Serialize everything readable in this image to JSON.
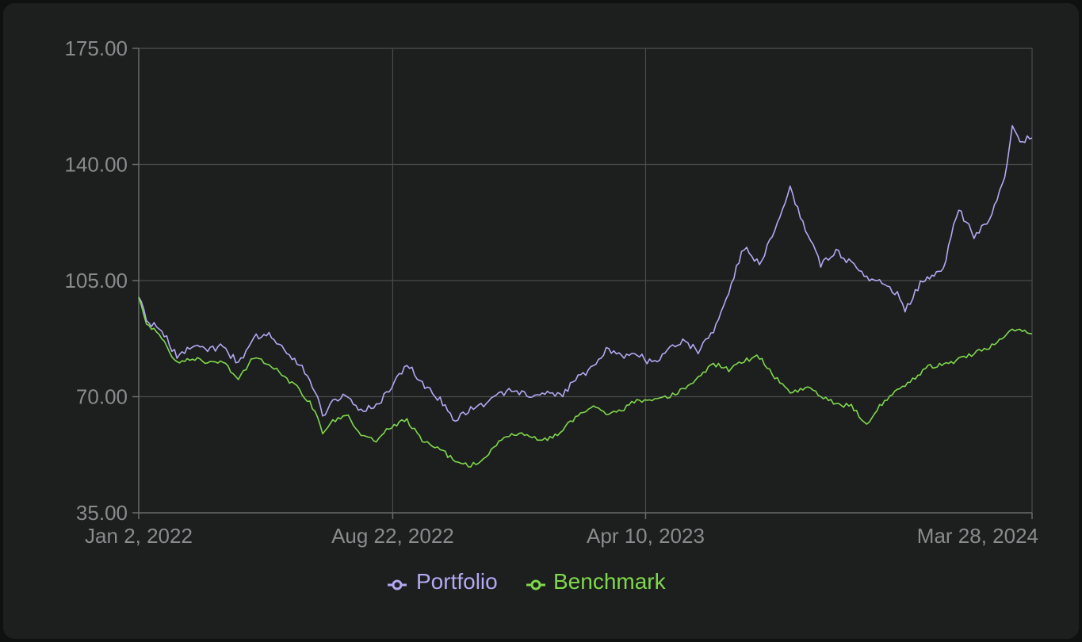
{
  "colors": {
    "background": "#1d1e1e",
    "grid": "#4a4b4c",
    "axis": "#6a6b6c",
    "tick_text": "#8a8b8c",
    "portfolio": "#b3a8f2",
    "benchmark": "#7fd94a"
  },
  "chart_data": {
    "type": "line",
    "x_axis": {
      "type": "date",
      "range": [
        "2022-01-02",
        "2024-03-28"
      ],
      "ticks": [
        "2022-01-02",
        "2022-08-22",
        "2023-04-10",
        "2024-03-28"
      ],
      "tick_labels": [
        "Jan 2, 2022",
        "Aug 22, 2022",
        "Apr 10, 2023",
        "Mar 28, 2024"
      ]
    },
    "y_axis": {
      "range": [
        35,
        175
      ],
      "ticks": [
        35,
        70,
        105,
        140,
        175
      ],
      "tick_labels": [
        "35.00",
        "70.00",
        "105.00",
        "140.00",
        "175.00"
      ]
    },
    "grid": true,
    "legend_position": "bottom-center",
    "series": [
      {
        "name": "Portfolio",
        "color": "#b3a8f2",
        "points": [
          [
            "2022-01-02",
            100
          ],
          [
            "2022-01-09",
            93
          ],
          [
            "2022-01-23",
            90
          ],
          [
            "2022-02-06",
            82
          ],
          [
            "2022-02-20",
            86
          ],
          [
            "2022-03-06",
            84
          ],
          [
            "2022-03-20",
            85
          ],
          [
            "2022-04-03",
            80
          ],
          [
            "2022-04-17",
            88
          ],
          [
            "2022-05-01",
            89
          ],
          [
            "2022-05-15",
            84
          ],
          [
            "2022-05-29",
            80
          ],
          [
            "2022-06-12",
            72
          ],
          [
            "2022-06-19",
            64
          ],
          [
            "2022-06-26",
            68
          ],
          [
            "2022-07-10",
            71
          ],
          [
            "2022-07-24",
            66
          ],
          [
            "2022-08-07",
            67
          ],
          [
            "2022-08-21",
            73
          ],
          [
            "2022-09-04",
            80
          ],
          [
            "2022-09-18",
            74
          ],
          [
            "2022-10-02",
            70
          ],
          [
            "2022-10-16",
            63
          ],
          [
            "2022-10-30",
            66
          ],
          [
            "2022-11-13",
            68
          ],
          [
            "2022-11-27",
            71
          ],
          [
            "2022-12-11",
            72
          ],
          [
            "2022-12-25",
            70
          ],
          [
            "2023-01-08",
            71
          ],
          [
            "2023-01-22",
            70
          ],
          [
            "2023-02-05",
            75
          ],
          [
            "2023-02-19",
            78
          ],
          [
            "2023-03-05",
            84
          ],
          [
            "2023-03-19",
            82
          ],
          [
            "2023-04-02",
            83
          ],
          [
            "2023-04-16",
            80
          ],
          [
            "2023-04-30",
            84
          ],
          [
            "2023-05-14",
            87
          ],
          [
            "2023-05-28",
            84
          ],
          [
            "2023-06-11",
            90
          ],
          [
            "2023-06-25",
            102
          ],
          [
            "2023-07-09",
            115
          ],
          [
            "2023-07-23",
            110
          ],
          [
            "2023-08-06",
            120
          ],
          [
            "2023-08-20",
            133
          ],
          [
            "2023-09-03",
            120
          ],
          [
            "2023-09-17",
            110
          ],
          [
            "2023-10-01",
            114
          ],
          [
            "2023-10-15",
            110
          ],
          [
            "2023-10-29",
            106
          ],
          [
            "2023-11-12",
            104
          ],
          [
            "2023-11-26",
            101
          ],
          [
            "2023-12-03",
            96
          ],
          [
            "2023-12-17",
            104
          ],
          [
            "2024-01-07",
            109
          ],
          [
            "2024-01-21",
            127
          ],
          [
            "2024-02-04",
            118
          ],
          [
            "2024-02-18",
            124
          ],
          [
            "2024-03-03",
            136
          ],
          [
            "2024-03-10",
            152
          ],
          [
            "2024-03-17",
            147
          ],
          [
            "2024-03-28",
            148
          ]
        ]
      },
      {
        "name": "Benchmark",
        "color": "#7fd94a",
        "points": [
          [
            "2022-01-02",
            100
          ],
          [
            "2022-01-09",
            92
          ],
          [
            "2022-01-23",
            88
          ],
          [
            "2022-02-06",
            80
          ],
          [
            "2022-02-20",
            82
          ],
          [
            "2022-03-06",
            80
          ],
          [
            "2022-03-20",
            81
          ],
          [
            "2022-04-03",
            75
          ],
          [
            "2022-04-17",
            82
          ],
          [
            "2022-05-01",
            80
          ],
          [
            "2022-05-15",
            76
          ],
          [
            "2022-05-29",
            72
          ],
          [
            "2022-06-12",
            66
          ],
          [
            "2022-06-19",
            59
          ],
          [
            "2022-06-26",
            62
          ],
          [
            "2022-07-10",
            65
          ],
          [
            "2022-07-24",
            58
          ],
          [
            "2022-08-07",
            57
          ],
          [
            "2022-08-21",
            61
          ],
          [
            "2022-09-04",
            63
          ],
          [
            "2022-09-18",
            57
          ],
          [
            "2022-10-02",
            55
          ],
          [
            "2022-10-16",
            51
          ],
          [
            "2022-10-30",
            49
          ],
          [
            "2022-11-13",
            51
          ],
          [
            "2022-11-27",
            56
          ],
          [
            "2022-12-11",
            59
          ],
          [
            "2022-12-25",
            58
          ],
          [
            "2023-01-08",
            57
          ],
          [
            "2023-01-22",
            59
          ],
          [
            "2023-02-05",
            64
          ],
          [
            "2023-02-19",
            67
          ],
          [
            "2023-03-05",
            65
          ],
          [
            "2023-03-19",
            66
          ],
          [
            "2023-04-02",
            69
          ],
          [
            "2023-04-16",
            69
          ],
          [
            "2023-04-30",
            70
          ],
          [
            "2023-05-14",
            72
          ],
          [
            "2023-05-28",
            76
          ],
          [
            "2023-06-11",
            80
          ],
          [
            "2023-06-25",
            78
          ],
          [
            "2023-07-09",
            81
          ],
          [
            "2023-07-23",
            82
          ],
          [
            "2023-08-06",
            76
          ],
          [
            "2023-08-20",
            71
          ],
          [
            "2023-09-03",
            73
          ],
          [
            "2023-09-17",
            70
          ],
          [
            "2023-10-01",
            68
          ],
          [
            "2023-10-15",
            67
          ],
          [
            "2023-10-29",
            62
          ],
          [
            "2023-11-12",
            68
          ],
          [
            "2023-11-26",
            72
          ],
          [
            "2023-12-10",
            75
          ],
          [
            "2023-12-24",
            79
          ],
          [
            "2024-01-14",
            80
          ],
          [
            "2024-01-28",
            82
          ],
          [
            "2024-02-11",
            84
          ],
          [
            "2024-02-25",
            86
          ],
          [
            "2024-03-10",
            90
          ],
          [
            "2024-03-28",
            89
          ]
        ]
      }
    ]
  },
  "legend": {
    "portfolio_label": "Portfolio",
    "benchmark_label": "Benchmark"
  }
}
